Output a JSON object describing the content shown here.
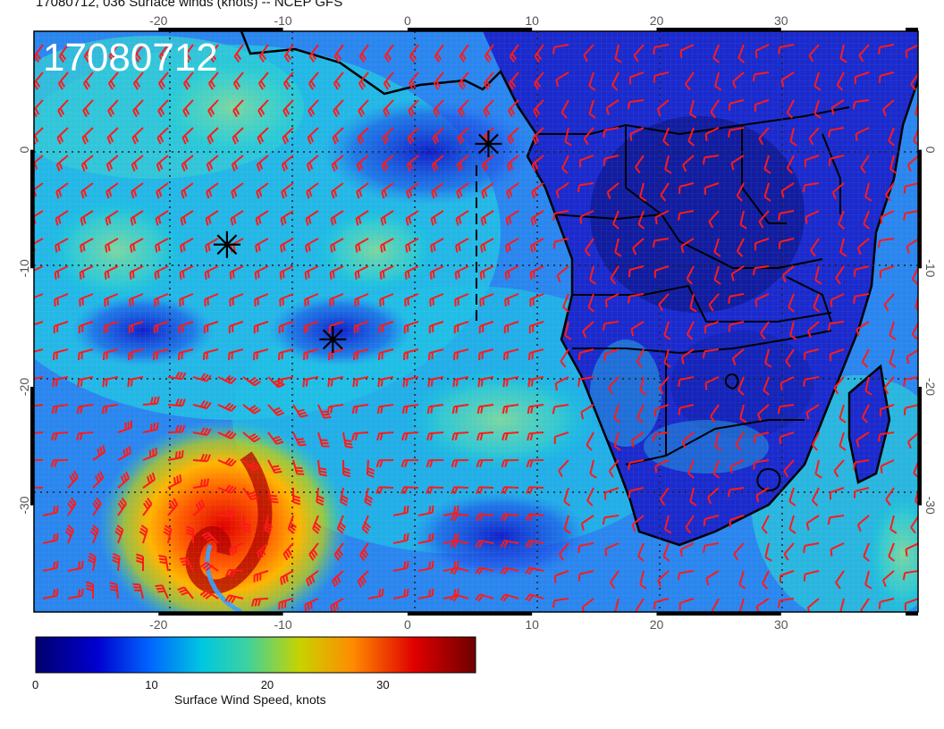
{
  "figure": {
    "title": "17080712, 036 Surface winds (knots) -- NCEP GFS",
    "stamp": "17080712",
    "colorbar_label": "Surface Wind Speed, knots"
  },
  "axes": {
    "lon_range": [
      -30,
      41
    ],
    "lat_range": [
      -39,
      10
    ],
    "lon_ticks": [
      "-20",
      "-10",
      "0",
      "10",
      "20",
      "30"
    ],
    "lat_ticks": [
      "0",
      "-10",
      "-20",
      "-30"
    ]
  },
  "colorbar": {
    "range": [
      0,
      38
    ],
    "ticks": [
      "0",
      "10",
      "20",
      "30"
    ],
    "tick_values": [
      0,
      10,
      20,
      30
    ],
    "colors": [
      "#00006e",
      "#0000d0",
      "#0066ff",
      "#00c8e0",
      "#3cd2a0",
      "#c8d200",
      "#ff8c00",
      "#e00000",
      "#6e0000"
    ]
  },
  "markers": [
    {
      "name": "star-marker-1",
      "lon": 6.5,
      "lat": 0.5
    },
    {
      "name": "star-marker-2",
      "lon": -14.5,
      "lat": -8.0
    },
    {
      "name": "star-marker-3",
      "lon": -6.0,
      "lat": -16.0
    }
  ],
  "colors": {
    "barb": "#ff1a1a",
    "coast": "#000000",
    "grid": "#222222"
  }
}
